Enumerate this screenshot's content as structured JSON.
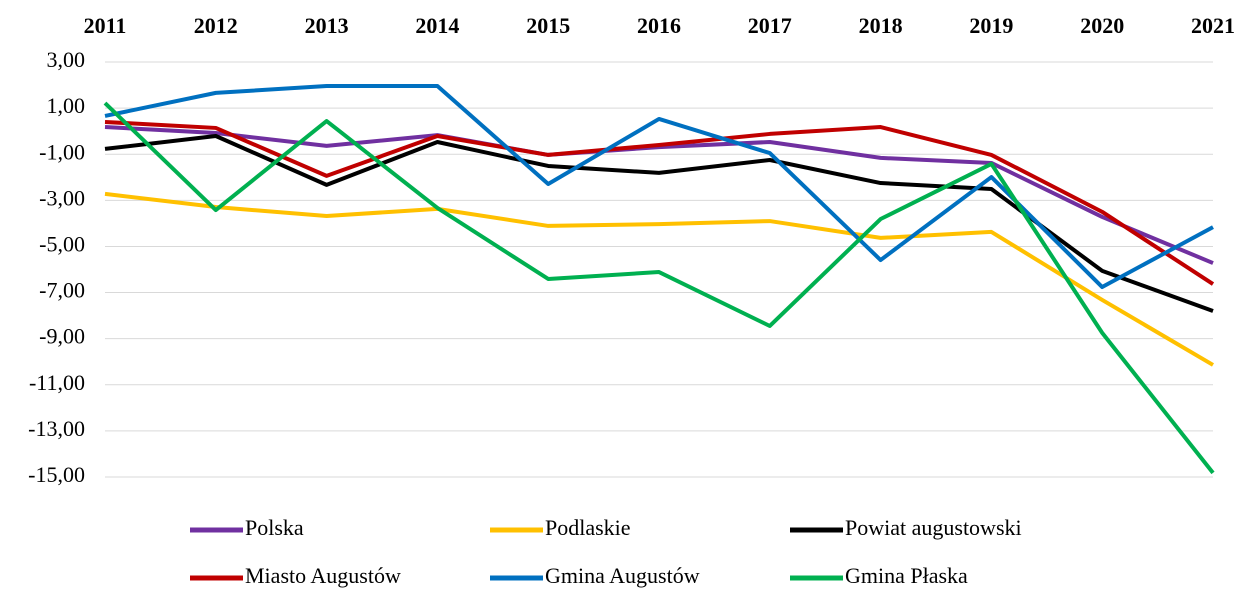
{
  "chart_data": {
    "type": "line",
    "categories": [
      "2011",
      "2012",
      "2013",
      "2014",
      "2015",
      "2016",
      "2017",
      "2018",
      "2019",
      "2020",
      "2021"
    ],
    "series": [
      {
        "name": "Polska",
        "color": "#7030a0",
        "values": [
          0.18,
          -0.08,
          -0.64,
          -0.17,
          -1.03,
          -0.69,
          -0.47,
          -1.16,
          -1.38,
          -3.72,
          -5.72
        ]
      },
      {
        "name": "Podlaskie",
        "color": "#ffc000",
        "values": [
          -2.72,
          -3.29,
          -3.68,
          -3.37,
          -4.11,
          -4.03,
          -3.9,
          -4.63,
          -4.37,
          -7.32,
          -10.14
        ]
      },
      {
        "name": "Powiat augustowski",
        "color": "#000000",
        "values": [
          -0.77,
          -0.21,
          -2.33,
          -0.47,
          -1.51,
          -1.81,
          -1.25,
          -2.25,
          -2.51,
          -6.06,
          -7.8
        ]
      },
      {
        "name": "Miasto Augustów",
        "color": "#c00000",
        "values": [
          0.4,
          0.14,
          -1.94,
          -0.21,
          -1.03,
          -0.6,
          -0.12,
          0.18,
          -1.03,
          -3.5,
          -6.63
        ]
      },
      {
        "name": "Gmina Augustów",
        "color": "#0070c0",
        "values": [
          0.66,
          1.66,
          1.96,
          1.96,
          -2.29,
          0.53,
          -0.95,
          -5.59,
          -1.99,
          -6.76,
          -4.16
        ]
      },
      {
        "name": "Gmina Płaska",
        "color": "#00b050",
        "values": [
          1.22,
          -3.42,
          0.44,
          -3.33,
          -6.41,
          -6.11,
          -8.45,
          -3.81,
          -1.42,
          -8.75,
          -14.82
        ]
      }
    ],
    "ylim": [
      -15,
      3
    ],
    "yticks": [
      {
        "value": 3,
        "label": "3,00"
      },
      {
        "value": 1,
        "label": "1,00"
      },
      {
        "value": -1,
        "label": "-1,00"
      },
      {
        "value": -3,
        "label": "-3,00"
      },
      {
        "value": -5,
        "label": "-5,00"
      },
      {
        "value": -7,
        "label": "-7,00"
      },
      {
        "value": -9,
        "label": "-9,00"
      },
      {
        "value": -11,
        "label": "-11,00"
      },
      {
        "value": -13,
        "label": "-13,00"
      },
      {
        "value": -15,
        "label": "-15,00"
      }
    ],
    "grid": true,
    "legend": "bottom"
  }
}
